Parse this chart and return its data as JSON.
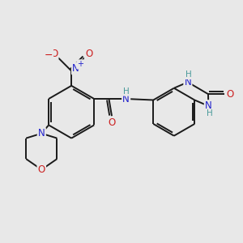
{
  "bg_color": "#e8e8e8",
  "bond_color": "#1a1a1a",
  "N_color": "#2020cc",
  "O_color": "#cc2020",
  "H_color": "#4a9a9a",
  "lw": 1.4,
  "xlim": [
    0,
    10
  ],
  "ylim": [
    0,
    10
  ],
  "figsize": [
    3.0,
    3.0
  ],
  "dpi": 100
}
